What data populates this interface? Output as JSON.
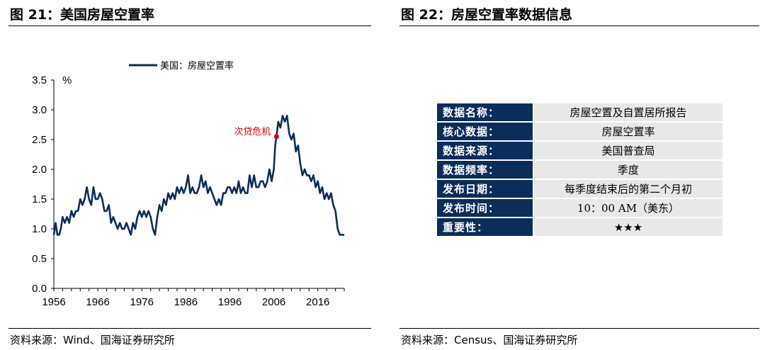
{
  "left_figure": {
    "title": "图 21：美国房屋空置率",
    "source": "资料来源：Wind、国海证券研究所"
  },
  "right_figure": {
    "title": "图 22：房屋空置率数据信息",
    "source": "资料来源：Census、国海证券研究所"
  },
  "chart_data": {
    "type": "line",
    "ylabel": "%",
    "ylim": [
      0,
      3.5
    ],
    "yticks": [
      "0.0",
      "0.5",
      "1.0",
      "1.5",
      "2.0",
      "2.5",
      "3.0",
      "3.5"
    ],
    "xlim": [
      1956,
      2022
    ],
    "xticks": [
      "1956",
      "1966",
      "1976",
      "1986",
      "1996",
      "2006",
      "2016"
    ],
    "legend": "top",
    "grid": false,
    "color": "#0b2d5b",
    "annotation": {
      "text": "次贷危机",
      "x": 2006.6,
      "y": 2.55,
      "color": "#e00000"
    },
    "series": [
      {
        "name": "美国：房屋空置率",
        "x": [
          1956,
          1956.4,
          1956.8,
          1957.2,
          1957.6,
          1958,
          1958.5,
          1959,
          1959.5,
          1960,
          1960.5,
          1961,
          1961.5,
          1962,
          1962.5,
          1963,
          1963.5,
          1964,
          1964.5,
          1965,
          1965.5,
          1966,
          1966.5,
          1967,
          1967.5,
          1968,
          1968.5,
          1969,
          1969.5,
          1970,
          1970.5,
          1971,
          1971.5,
          1972,
          1972.5,
          1973,
          1973.5,
          1974,
          1974.5,
          1975,
          1975.5,
          1976,
          1976.5,
          1977,
          1977.5,
          1978,
          1978.5,
          1979,
          1979.5,
          1980,
          1980.5,
          1981,
          1981.5,
          1982,
          1982.5,
          1983,
          1983.5,
          1984,
          1984.5,
          1985,
          1985.5,
          1986,
          1986.5,
          1987,
          1987.5,
          1988,
          1988.5,
          1989,
          1989.5,
          1990,
          1990.5,
          1991,
          1991.5,
          1992,
          1992.5,
          1993,
          1993.5,
          1994,
          1994.5,
          1995,
          1995.5,
          1996,
          1996.5,
          1997,
          1997.5,
          1998,
          1998.5,
          1999,
          1999.5,
          2000,
          2000.5,
          2001,
          2001.5,
          2002,
          2002.5,
          2003,
          2003.5,
          2004,
          2004.5,
          2005,
          2005.5,
          2006,
          2006.3,
          2006.6,
          2007,
          2007.5,
          2008,
          2008.5,
          2009,
          2009.5,
          2010,
          2010.5,
          2011,
          2011.5,
          2012,
          2012.5,
          2013,
          2013.5,
          2014,
          2014.5,
          2015,
          2015.5,
          2016,
          2016.5,
          2017,
          2017.5,
          2018,
          2018.5,
          2019,
          2019.5,
          2020,
          2020.5,
          2021,
          2021.5,
          2022
        ],
        "values": [
          0.9,
          1.1,
          0.9,
          0.9,
          1.0,
          1.2,
          1.1,
          1.2,
          1.1,
          1.3,
          1.2,
          1.3,
          1.3,
          1.5,
          1.4,
          1.5,
          1.7,
          1.5,
          1.4,
          1.7,
          1.5,
          1.5,
          1.6,
          1.5,
          1.3,
          1.3,
          1.4,
          1.1,
          1.2,
          1.1,
          1.0,
          1.1,
          1.0,
          1.0,
          1.1,
          1.0,
          0.9,
          1.1,
          1.0,
          1.2,
          1.3,
          1.2,
          1.3,
          1.2,
          1.3,
          1.2,
          1.0,
          0.9,
          1.2,
          1.4,
          1.3,
          1.5,
          1.4,
          1.6,
          1.5,
          1.6,
          1.5,
          1.7,
          1.6,
          1.7,
          1.6,
          1.7,
          1.9,
          1.6,
          1.7,
          1.6,
          1.6,
          1.7,
          1.9,
          1.7,
          1.8,
          1.6,
          1.7,
          1.6,
          1.5,
          1.4,
          1.5,
          1.4,
          1.6,
          1.6,
          1.7,
          1.7,
          1.6,
          1.7,
          1.6,
          1.8,
          1.6,
          1.7,
          1.6,
          1.6,
          1.9,
          1.7,
          1.9,
          1.7,
          1.7,
          1.8,
          1.8,
          1.7,
          1.8,
          2.0,
          1.8,
          2.0,
          2.4,
          2.55,
          2.8,
          2.7,
          2.9,
          2.8,
          2.9,
          2.6,
          2.5,
          2.6,
          2.3,
          2.4,
          2.1,
          1.9,
          2.0,
          1.9,
          1.9,
          1.8,
          1.9,
          1.7,
          1.8,
          1.6,
          1.7,
          1.5,
          1.6,
          1.5,
          1.6,
          1.4,
          1.3,
          1.0,
          0.9,
          0.9,
          0.9
        ]
      }
    ]
  },
  "info_table": {
    "rows": [
      {
        "key": "数据名称：",
        "value": "房屋空置及自置居所报告"
      },
      {
        "key": "核心数据：",
        "value": "房屋空置率"
      },
      {
        "key": "数据来源：",
        "value": "美国普查局"
      },
      {
        "key": "数据频率：",
        "value": "季度"
      },
      {
        "key": "发布日期：",
        "value": "每季度结束后的第二个月初"
      },
      {
        "key": "发布时间：",
        "value": "10：00 AM（美东）"
      },
      {
        "key": "重要性：",
        "value": "★★★"
      }
    ]
  }
}
